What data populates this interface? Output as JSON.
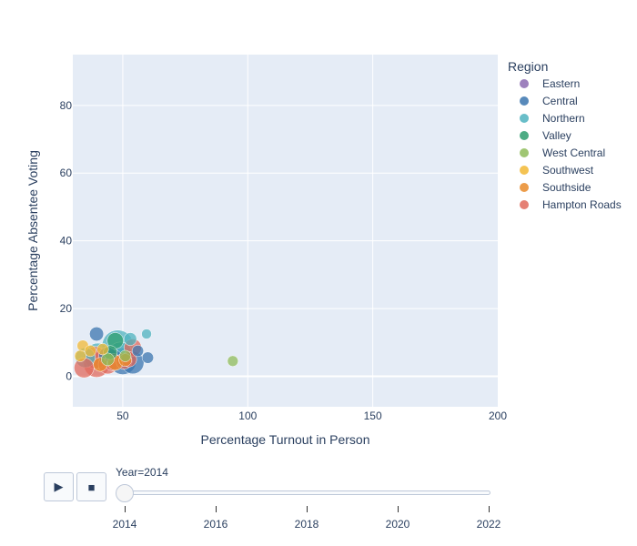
{
  "chart_data": {
    "type": "scatter",
    "title": "",
    "xlabel": "Percentage Turnout in Person",
    "ylabel": "Percentage Absentee Voting",
    "xlim": [
      30,
      200
    ],
    "ylim": [
      -9,
      95
    ],
    "xticks": [
      50,
      100,
      150,
      200
    ],
    "yticks": [
      0,
      20,
      40,
      60,
      80
    ],
    "grid": true,
    "legend_title": "Region",
    "legend_position": "right",
    "series": [
      {
        "name": "Eastern",
        "color": "#8c6bb1",
        "points": []
      },
      {
        "name": "Central",
        "color": "#3b75af",
        "points": [
          {
            "x": 50,
            "y": 4.5,
            "size": 2.2
          },
          {
            "x": 54,
            "y": 4,
            "size": 1.5
          },
          {
            "x": 46,
            "y": 5,
            "size": 1.2
          },
          {
            "x": 39.5,
            "y": 12.5,
            "size": 0.6
          },
          {
            "x": 56,
            "y": 7.5,
            "size": 0.4
          },
          {
            "x": 60,
            "y": 5.5,
            "size": 0.4
          },
          {
            "x": 44,
            "y": 6,
            "size": 1
          }
        ]
      },
      {
        "name": "Northern",
        "color": "#4fb3bf",
        "points": [
          {
            "x": 48,
            "y": 9,
            "size": 3
          },
          {
            "x": 40,
            "y": 6,
            "size": 2
          },
          {
            "x": 49,
            "y": 6.5,
            "size": 1.8
          },
          {
            "x": 35,
            "y": 5.5,
            "size": 1.2
          },
          {
            "x": 53,
            "y": 11,
            "size": 0.5
          },
          {
            "x": 59.5,
            "y": 12.5,
            "size": 0.3
          }
        ]
      },
      {
        "name": "Valley",
        "color": "#2e9e6e",
        "points": [
          {
            "x": 47,
            "y": 10.5,
            "size": 0.8
          },
          {
            "x": 45,
            "y": 7,
            "size": 0.6
          }
        ]
      },
      {
        "name": "West Central",
        "color": "#8fbc5a",
        "points": [
          {
            "x": 94,
            "y": 4.5,
            "size": 0.35
          },
          {
            "x": 44,
            "y": 5,
            "size": 0.5
          },
          {
            "x": 51,
            "y": 6,
            "size": 0.4
          }
        ]
      },
      {
        "name": "Southwest",
        "color": "#f2b935",
        "points": [
          {
            "x": 34,
            "y": 9,
            "size": 0.4
          },
          {
            "x": 33,
            "y": 6,
            "size": 0.4
          },
          {
            "x": 42,
            "y": 8,
            "size": 0.4
          },
          {
            "x": 37,
            "y": 7.5,
            "size": 0.4
          }
        ]
      },
      {
        "name": "Southside",
        "color": "#e98b2a",
        "points": [
          {
            "x": 47,
            "y": 4,
            "size": 0.7
          },
          {
            "x": 41,
            "y": 3.5,
            "size": 0.6
          },
          {
            "x": 51,
            "y": 4.8,
            "size": 0.5
          }
        ]
      },
      {
        "name": "Hampton Roads",
        "color": "#e06a5c",
        "points": [
          {
            "x": 39.5,
            "y": 3.5,
            "size": 2
          },
          {
            "x": 39,
            "y": 5.5,
            "size": 1.5
          },
          {
            "x": 34.5,
            "y": 2.5,
            "size": 1.2
          },
          {
            "x": 44,
            "y": 3.5,
            "size": 1.1
          },
          {
            "x": 54,
            "y": 8.5,
            "size": 0.9
          },
          {
            "x": 50.5,
            "y": 4.5,
            "size": 0.8
          },
          {
            "x": 46,
            "y": 4.2,
            "size": 0.9
          },
          {
            "x": 52.5,
            "y": 5,
            "size": 0.7
          }
        ]
      }
    ]
  },
  "controls": {
    "play_icon": "▶",
    "stop_icon": "■",
    "slider_current": "Year=2014",
    "slider_ticks": [
      "2014",
      "2016",
      "2018",
      "2020",
      "2022"
    ]
  }
}
